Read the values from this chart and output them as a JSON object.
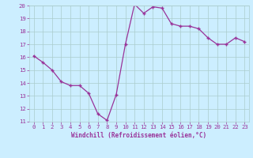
{
  "x": [
    0,
    1,
    2,
    3,
    4,
    5,
    6,
    7,
    8,
    9,
    10,
    11,
    12,
    13,
    14,
    15,
    16,
    17,
    18,
    19,
    20,
    21,
    22,
    23
  ],
  "y": [
    16.1,
    15.6,
    15.0,
    14.1,
    13.8,
    13.8,
    13.2,
    11.6,
    11.1,
    13.1,
    17.0,
    20.1,
    19.4,
    19.9,
    19.8,
    18.6,
    18.4,
    18.4,
    18.2,
    17.5,
    17.0,
    17.0,
    17.5,
    17.2
  ],
  "line_color": "#993399",
  "marker": "+",
  "marker_color": "#993399",
  "bg_color": "#cceeff",
  "grid_color": "#aacccc",
  "xlabel": "Windchill (Refroidissement éolien,°C)",
  "xlabel_color": "#993399",
  "tick_color": "#993399",
  "ylim": [
    11,
    20
  ],
  "xlim": [
    -0.5,
    23.5
  ],
  "yticks": [
    11,
    12,
    13,
    14,
    15,
    16,
    17,
    18,
    19,
    20
  ],
  "xticks": [
    0,
    1,
    2,
    3,
    4,
    5,
    6,
    7,
    8,
    9,
    10,
    11,
    12,
    13,
    14,
    15,
    16,
    17,
    18,
    19,
    20,
    21,
    22,
    23
  ]
}
